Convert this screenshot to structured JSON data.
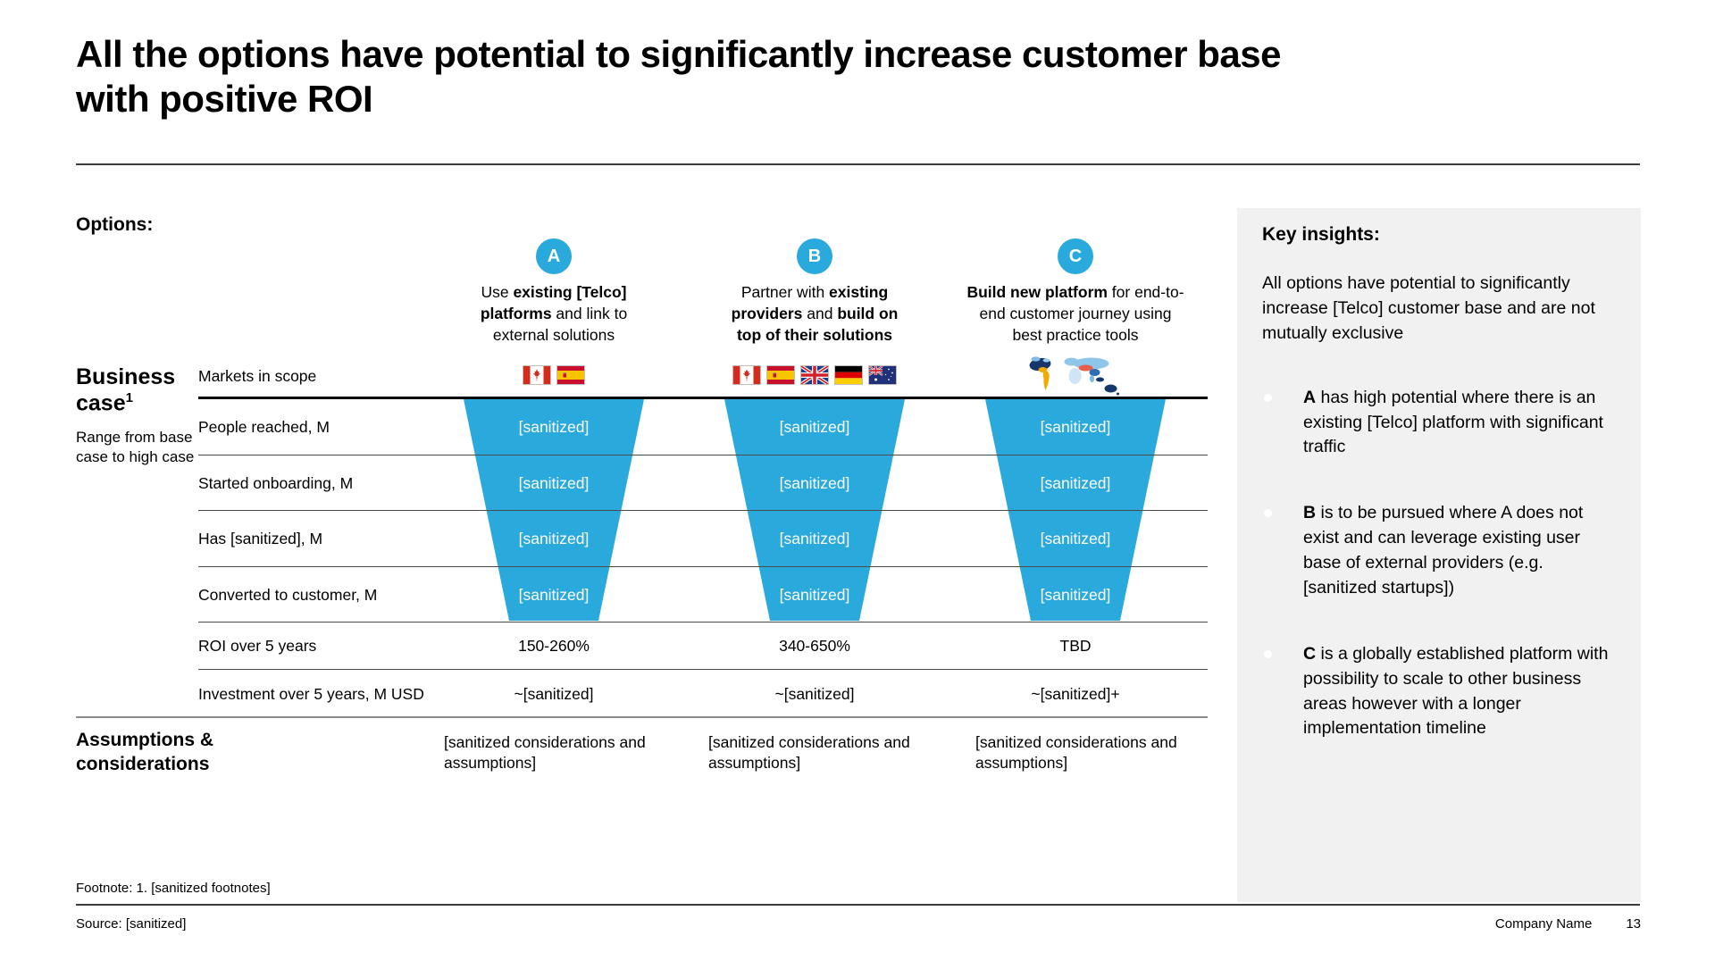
{
  "slide": {
    "title": "All the options have potential to significantly increase customer base with positive ROI",
    "options_label": "Options:",
    "footnote": "Footnote: 1. [sanitized footnotes]",
    "source": "Source: [sanitized]",
    "company": "Company Name",
    "page_number": "13"
  },
  "colors": {
    "accent_blue": "#29A9DC",
    "panel_bg": "#F1F1F1"
  },
  "business_case": {
    "label": "Business case",
    "label_sup": "1",
    "sublabel": "Range from base case to high case",
    "row_labels": [
      "Markets in scope",
      "People reached, M",
      "Started onboarding, M",
      "Has [sanitized], M",
      "Converted to customer, M",
      "ROI over 5 years",
      "Investment over 5 years, M USD"
    ]
  },
  "columns": [
    {
      "badge": "A",
      "description_segments": [
        {
          "t": "Use ",
          "b": false
        },
        {
          "t": "existing [Telco] platforms",
          "b": true
        },
        {
          "t": " and link to external solutions",
          "b": false
        }
      ],
      "markets_icons": [
        "flag-canada",
        "flag-spain"
      ],
      "funnel_values": [
        "[sanitized]",
        "[sanitized]",
        "[sanitized]",
        "[sanitized]"
      ],
      "roi": "150-260%",
      "investment": "~[sanitized]",
      "assumptions": "[sanitized considerations and assumptions]"
    },
    {
      "badge": "B",
      "description_segments": [
        {
          "t": "Partner with ",
          "b": false
        },
        {
          "t": "existing providers",
          "b": true
        },
        {
          "t": " and ",
          "b": false
        },
        {
          "t": "build on top of their solutions",
          "b": true
        }
      ],
      "markets_icons": [
        "flag-canada",
        "flag-spain",
        "flag-uk",
        "flag-germany",
        "flag-australia"
      ],
      "funnel_values": [
        "[sanitized]",
        "[sanitized]",
        "[sanitized]",
        "[sanitized]"
      ],
      "roi": "340-650%",
      "investment": "~[sanitized]",
      "assumptions": "[sanitized considerations and assumptions]"
    },
    {
      "badge": "C",
      "description_segments": [
        {
          "t": "Build new platform",
          "b": true
        },
        {
          "t": " for end-to-end customer journey using best practice tools",
          "b": false
        }
      ],
      "markets_icons": [
        "world-map"
      ],
      "funnel_values": [
        "[sanitized]",
        "[sanitized]",
        "[sanitized]",
        "[sanitized]"
      ],
      "roi": "TBD",
      "investment": "~[sanitized]+",
      "assumptions": "[sanitized considerations and assumptions]"
    }
  ],
  "assumptions_label": "Assumptions & considerations",
  "key_insights": {
    "title": "Key insights:",
    "intro": "All options have potential to significantly increase [Telco] customer base and are not mutually exclusive",
    "bullets": [
      {
        "segments": [
          {
            "t": "A",
            "b": true
          },
          {
            "t": " has high potential where there is an existing [Telco] platform with significant traffic",
            "b": false
          }
        ]
      },
      {
        "segments": [
          {
            "t": "B",
            "b": true
          },
          {
            "t": " is to be pursued where A does not exist and can leverage existing user base of external providers (e.g. [sanitized startups])",
            "b": false
          }
        ]
      },
      {
        "segments": [
          {
            "t": "C",
            "b": true
          },
          {
            "t": " is a globally established platform with possibility to scale to other business areas however with a longer implementation timeline",
            "b": false
          }
        ]
      }
    ]
  },
  "chart_data": {
    "type": "funnel",
    "title": "Business case funnel by option (base to high case)",
    "categories": [
      "People reached, M",
      "Started onboarding, M",
      "Has [sanitized], M",
      "Converted to customer, M"
    ],
    "series": [
      {
        "name": "A",
        "values": [
          "[sanitized]",
          "[sanitized]",
          "[sanitized]",
          "[sanitized]"
        ],
        "roi_over_5_years": "150-260%",
        "investment_over_5_years_m_usd": "~[sanitized]"
      },
      {
        "name": "B",
        "values": [
          "[sanitized]",
          "[sanitized]",
          "[sanitized]",
          "[sanitized]"
        ],
        "roi_over_5_years": "340-650%",
        "investment_over_5_years_m_usd": "~[sanitized]"
      },
      {
        "name": "C",
        "values": [
          "[sanitized]",
          "[sanitized]",
          "[sanitized]",
          "[sanitized]"
        ],
        "roi_over_5_years": "TBD",
        "investment_over_5_years_m_usd": "~[sanitized]+"
      }
    ]
  }
}
